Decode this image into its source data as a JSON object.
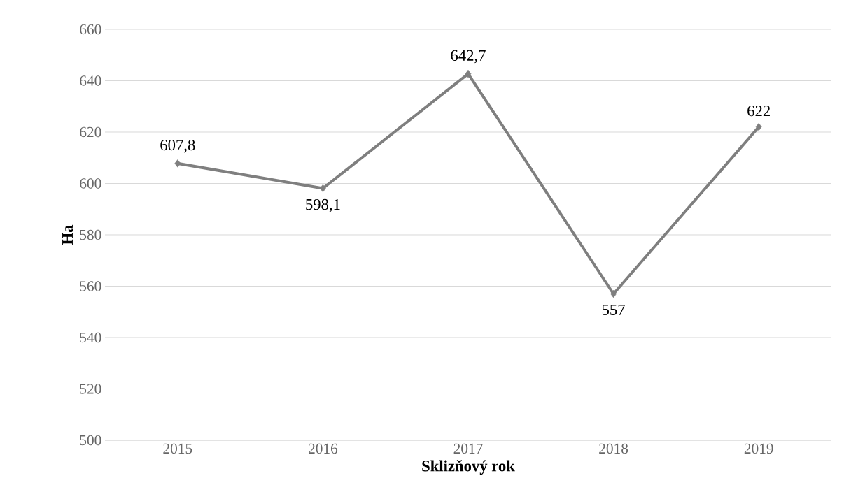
{
  "chart_data": {
    "type": "line",
    "xlabel": "Sklizňový rok",
    "ylabel": "Ha",
    "categories": [
      "2015",
      "2016",
      "2017",
      "2018",
      "2019"
    ],
    "series": [
      {
        "color": "#7f7f7f",
        "values": [
          607.8,
          598.1,
          642.7,
          557,
          622
        ],
        "value_labels": [
          "607,8",
          "598,1",
          "642,7",
          "557",
          "622"
        ]
      }
    ],
    "ylim": [
      500,
      660
    ],
    "yticks": [
      500,
      520,
      540,
      560,
      580,
      600,
      620,
      640,
      660
    ],
    "grid": "y",
    "marker": "diamond",
    "line_style": "solid"
  }
}
